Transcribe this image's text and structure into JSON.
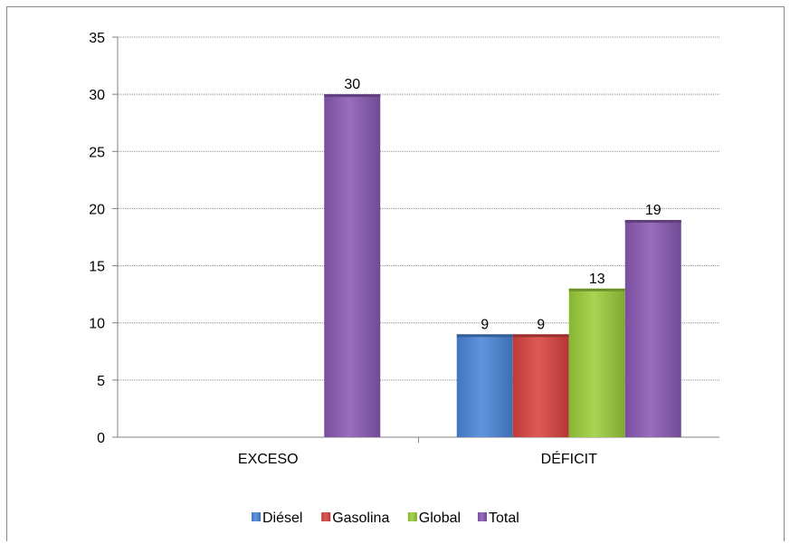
{
  "chart_data": {
    "type": "bar",
    "categories": [
      "EXCESO",
      "DÉFICIT"
    ],
    "series": [
      {
        "name": "Diésel",
        "values": [
          null,
          9
        ],
        "color": "#4a86d8"
      },
      {
        "name": "Gasolina",
        "values": [
          null,
          9
        ],
        "color": "#d9433f"
      },
      {
        "name": "Global",
        "values": [
          null,
          13
        ],
        "color": "#9bcf3a"
      },
      {
        "name": "Total",
        "values": [
          30,
          19
        ],
        "color": "#8a5ab4"
      }
    ],
    "data_labels": [
      {
        "series": "Total",
        "category": "EXCESO",
        "text": "30"
      },
      {
        "series": "Diésel",
        "category": "DÉFICIT",
        "text": "9"
      },
      {
        "series": "Gasolina",
        "category": "DÉFICIT",
        "text": "9"
      },
      {
        "series": "Global",
        "category": "DÉFICIT",
        "text": "13"
      },
      {
        "series": "Total",
        "category": "DÉFICIT",
        "text": "19"
      }
    ],
    "ylim": [
      0,
      35
    ],
    "yticks": [
      "0",
      "5",
      "10",
      "15",
      "20",
      "25",
      "30",
      "35"
    ],
    "ytick_values": [
      0,
      5,
      10,
      15,
      20,
      25,
      30,
      35
    ],
    "grid": true,
    "legend_position": "bottom",
    "title": "",
    "xlabel": "",
    "ylabel": ""
  }
}
